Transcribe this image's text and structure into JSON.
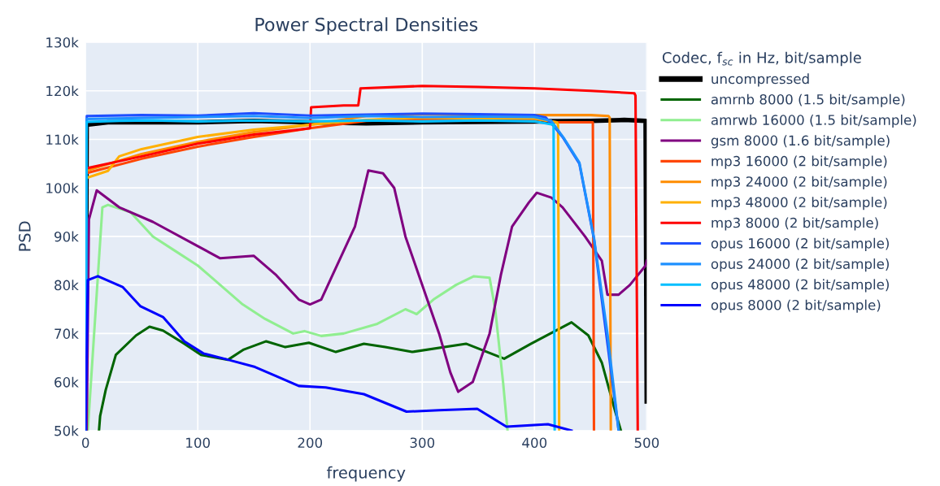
{
  "chart_data": {
    "type": "line",
    "title": "Power Spectral Densities",
    "xlabel": "frequency",
    "ylabel": "PSD",
    "legend_title": "Codec, f$_{sc}$ in Hz, bit/sample",
    "xlim": [
      0,
      500
    ],
    "xticks": [
      0,
      100,
      200,
      300,
      400,
      500
    ],
    "ylim": [
      50000,
      130000
    ],
    "yticks": [
      {
        "value": 50000,
        "label": "50k"
      },
      {
        "value": 60000,
        "label": "60k"
      },
      {
        "value": 70000,
        "label": "70k"
      },
      {
        "value": 80000,
        "label": "80k"
      },
      {
        "value": 90000,
        "label": "90k"
      },
      {
        "value": 100000,
        "label": "100k"
      },
      {
        "value": 110000,
        "label": "110k"
      },
      {
        "value": 120000,
        "label": "120k"
      },
      {
        "value": 130000,
        "label": "130k"
      }
    ],
    "grid": true,
    "legend": "right",
    "marker": "none",
    "line_style": "solid",
    "series": [
      {
        "name": "uncompressed",
        "color": "#000000",
        "x": [
          0,
          1,
          20,
          50,
          100,
          150,
          200,
          250,
          300,
          350,
          400,
          450,
          480,
          499,
          500
        ],
        "values": [
          50000,
          113000,
          113500,
          113500,
          113500,
          113800,
          113500,
          113300,
          113500,
          113600,
          113700,
          113800,
          114000,
          113800,
          56000
        ]
      },
      {
        "name": "amrnb 8000 (1.5 bit/sample)",
        "color": "#006400",
        "x": [
          12,
          13,
          18,
          27,
          45,
          57,
          69,
          88,
          103,
          127,
          141,
          161,
          178,
          199,
          223,
          248,
          267,
          291,
          339,
          373,
          397,
          433,
          448,
          460,
          472,
          477
        ],
        "values": [
          50000,
          53000,
          58400,
          65600,
          69600,
          71400,
          70600,
          67900,
          65600,
          64600,
          66700,
          68400,
          67200,
          68100,
          66200,
          67900,
          67200,
          66200,
          67900,
          64800,
          67900,
          72300,
          69600,
          64000,
          53900,
          50000
        ]
      },
      {
        "name": "amrwb 16000 (1.5 bit/sample)",
        "color": "#90ee90",
        "x": [
          2,
          15,
          20,
          40,
          60,
          80,
          100,
          120,
          140,
          160,
          185,
          195,
          210,
          230,
          260,
          285,
          295,
          310,
          330,
          346,
          360,
          365,
          372,
          376
        ],
        "values": [
          50000,
          96000,
          96500,
          95000,
          90000,
          87000,
          84000,
          80000,
          76000,
          73000,
          70000,
          70500,
          69500,
          70000,
          72000,
          75000,
          74000,
          77000,
          80000,
          81800,
          81500,
          75000,
          60000,
          50000
        ]
      },
      {
        "name": "gsm 8000 (1.6 bit/sample)",
        "color": "#800080",
        "x": [
          1,
          3,
          10,
          30,
          60,
          100,
          120,
          150,
          170,
          190,
          200,
          210,
          220,
          240,
          252,
          265,
          275,
          285,
          300,
          315,
          325,
          332,
          345,
          360,
          370,
          380,
          395,
          402,
          415,
          425,
          445,
          460,
          465,
          475,
          485,
          499,
          500
        ],
        "values": [
          50000,
          93500,
          99500,
          96000,
          93000,
          88000,
          85500,
          86000,
          82000,
          77000,
          76000,
          77000,
          82000,
          92000,
          103600,
          103000,
          100000,
          90000,
          80000,
          70000,
          62000,
          58000,
          60000,
          70000,
          82000,
          92000,
          97000,
          99000,
          98000,
          96000,
          90000,
          85000,
          78000,
          78000,
          80000,
          84000,
          85000
        ]
      },
      {
        "name": "mp3 16000 (2 bit/sample)",
        "color": "#ff4500",
        "x": [
          0,
          50,
          100,
          150,
          200,
          250,
          300,
          350,
          400,
          420,
          450,
          452,
          453
        ],
        "values": [
          103000,
          106000,
          108500,
          110500,
          112300,
          113800,
          114200,
          114300,
          114200,
          113500,
          113500,
          113500,
          50000
        ]
      },
      {
        "name": "mp3 24000 (2 bit/sample)",
        "color": "#ff8c00",
        "x": [
          0,
          50,
          100,
          150,
          200,
          250,
          300,
          350,
          400,
          450,
          466,
          467,
          468
        ],
        "values": [
          103500,
          107000,
          109500,
          111500,
          113000,
          114800,
          115200,
          115000,
          115000,
          115000,
          114800,
          114500,
          50000
        ]
      },
      {
        "name": "mp3 48000 (2 bit/sample)",
        "color": "#ffb000",
        "x": [
          0,
          20,
          30,
          50,
          100,
          150,
          200,
          250,
          300,
          350,
          400,
          420,
          421,
          422
        ],
        "values": [
          102000,
          103500,
          106500,
          108000,
          110500,
          112000,
          113000,
          114000,
          114500,
          114300,
          114300,
          113500,
          113000,
          50000
        ]
      },
      {
        "name": "mp3 8000 (2 bit/sample)",
        "color": "#ff0000",
        "x": [
          0,
          50,
          100,
          150,
          190,
          200,
          201,
          230,
          243,
          245,
          300,
          350,
          400,
          450,
          489,
          490,
          492
        ],
        "values": [
          104000,
          106500,
          109100,
          111000,
          112000,
          112300,
          116600,
          117000,
          117000,
          120500,
          121000,
          120800,
          120500,
          120000,
          119500,
          119000,
          50000
        ]
      },
      {
        "name": "opus 16000 (2 bit/sample)",
        "color": "#1f4fff",
        "x": [
          0,
          1,
          50,
          100,
          150,
          200,
          250,
          300,
          350,
          400,
          410,
          418,
          425,
          440,
          453,
          475
        ],
        "values": [
          50000,
          114800,
          115000,
          114900,
          115400,
          114900,
          115100,
          115300,
          115200,
          115000,
          114500,
          112500,
          110500,
          105000,
          89500,
          50000
        ]
      },
      {
        "name": "opus 24000 (2 bit/sample)",
        "color": "#1e90ff",
        "x": [
          0,
          1,
          50,
          100,
          150,
          200,
          250,
          300,
          350,
          400,
          415,
          426,
          440,
          453,
          465,
          475
        ],
        "values": [
          50000,
          114200,
          114400,
          114600,
          114800,
          114400,
          114800,
          114600,
          114700,
          114600,
          113800,
          110300,
          105200,
          89700,
          70000,
          50000
        ]
      },
      {
        "name": "opus 48000 (2 bit/sample)",
        "color": "#00bfff",
        "x": [
          0,
          1,
          30,
          60,
          100,
          150,
          200,
          250,
          300,
          350,
          400,
          410,
          417,
          418
        ],
        "values": [
          50000,
          113600,
          113800,
          113900,
          113700,
          113900,
          113700,
          113900,
          113700,
          113900,
          113700,
          113300,
          113000,
          50000
        ]
      },
      {
        "name": "opus 8000 (2 bit/sample)",
        "color": "#0000ff",
        "x": [
          0,
          2,
          11,
          33,
          49,
          69,
          88,
          105,
          127,
          151,
          170,
          190,
          214,
          248,
          286,
          315,
          349,
          375,
          412,
          433
        ],
        "values": [
          50000,
          81000,
          81800,
          79600,
          75600,
          73400,
          68400,
          65900,
          64600,
          63100,
          61200,
          59200,
          58900,
          57500,
          53900,
          54200,
          54500,
          50800,
          51300,
          50000
        ]
      }
    ]
  }
}
